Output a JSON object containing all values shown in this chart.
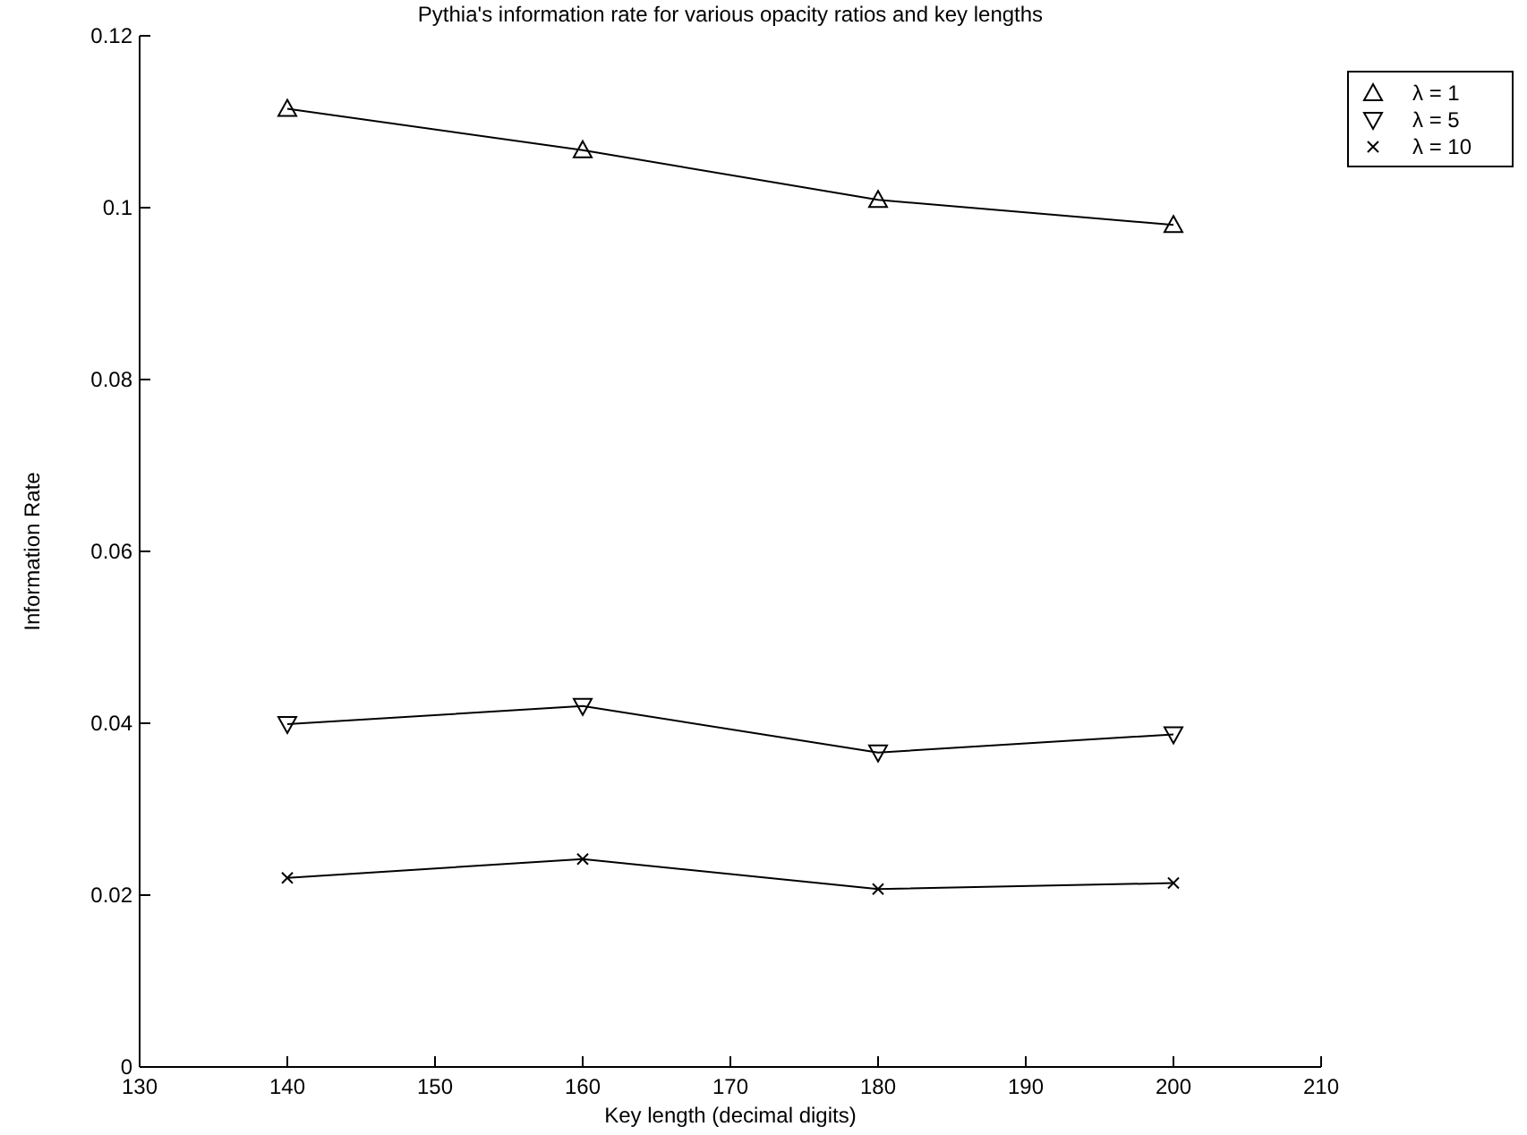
{
  "chart_data": {
    "type": "line",
    "title": "Pythia's information rate for various opacity ratios and key lengths",
    "xlabel": "Key length (decimal digits)",
    "ylabel": "Information Rate",
    "x": [
      140,
      160,
      180,
      200
    ],
    "series": [
      {
        "name": "λ = 1",
        "color": "#000000",
        "marker": "triangle",
        "values": [
          0.1115,
          0.1067,
          0.1009,
          0.098
        ]
      },
      {
        "name": "λ = 5",
        "color": "#000000",
        "marker": "triangle-down",
        "values": [
          0.0399,
          0.042,
          0.0366,
          0.0387
        ]
      },
      {
        "name": "λ = 10",
        "color": "#000000",
        "marker": "cross",
        "values": [
          0.022,
          0.0242,
          0.0207,
          0.0214
        ]
      }
    ],
    "xlim": [
      130,
      210
    ],
    "xticks": [
      130,
      140,
      150,
      160,
      170,
      180,
      190,
      200,
      210
    ],
    "ylim": [
      0,
      0.12
    ],
    "yticks": [
      0,
      0.02,
      0.04,
      0.06,
      0.08,
      0.1,
      0.12
    ],
    "grid": false,
    "legend": "top right",
    "line_style": "solid"
  }
}
